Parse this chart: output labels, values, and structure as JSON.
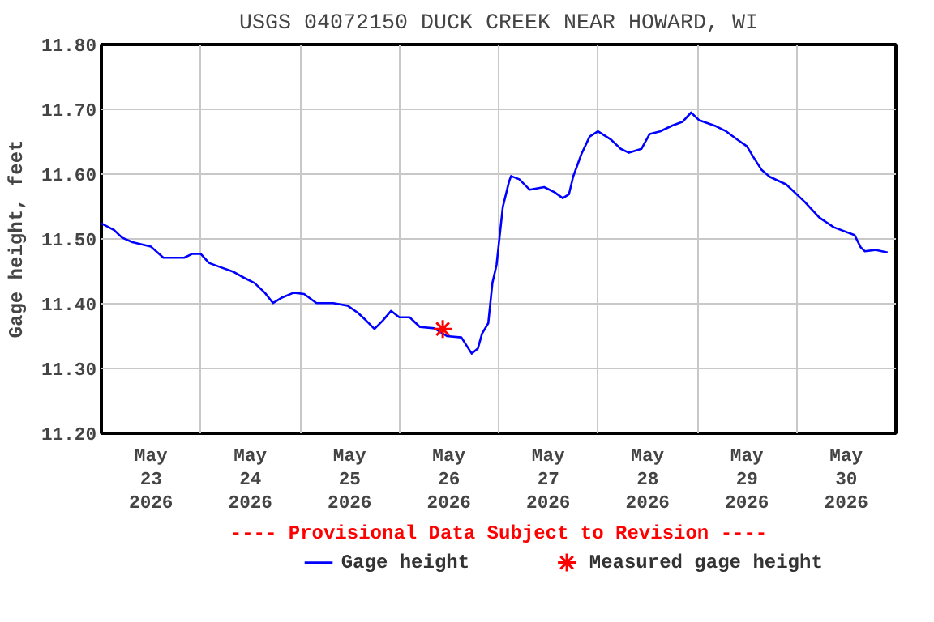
{
  "chart_data": {
    "type": "line",
    "title": "USGS 04072150 DUCK CREEK NEAR HOWARD, WI",
    "ylabel": "Gage height, feet",
    "annotations": [
      "---- Provisional Data Subject to Revision ----"
    ],
    "xlim": [
      "2026-05-23T00:00",
      "2026-05-31T00:00"
    ],
    "xticks": [
      {
        "value": "2026-05-23T12:00",
        "label": "May\n23\n2026"
      },
      {
        "value": "2026-05-24T12:00",
        "label": "May\n24\n2026"
      },
      {
        "value": "2026-05-25T12:00",
        "label": "May\n25\n2026"
      },
      {
        "value": "2026-05-26T12:00",
        "label": "May\n26\n2026"
      },
      {
        "value": "2026-05-27T12:00",
        "label": "May\n27\n2026"
      },
      {
        "value": "2026-05-28T12:00",
        "label": "May\n28\n2026"
      },
      {
        "value": "2026-05-29T12:00",
        "label": "May\n29\n2026"
      },
      {
        "value": "2026-05-30T12:00",
        "label": "May\n30\n2026"
      },
      {
        "value": "2026-05-24T00:00",
        "label": null
      },
      {
        "value": "2026-05-25T00:00",
        "label": null
      },
      {
        "value": "2026-05-26T00:00",
        "label": null
      },
      {
        "value": "2026-05-27T00:00",
        "label": null
      },
      {
        "value": "2026-05-28T00:00",
        "label": null
      },
      {
        "value": "2026-05-29T00:00",
        "label": null
      },
      {
        "value": "2026-05-30T00:00",
        "label": null
      }
    ],
    "ylim": [
      11.2,
      11.8
    ],
    "yticks": [
      {
        "value": 11.2,
        "label": "11.20"
      },
      {
        "value": 11.3,
        "label": "11.30"
      },
      {
        "value": 11.4,
        "label": "11.40"
      },
      {
        "value": 11.5,
        "label": "11.50"
      },
      {
        "value": 11.6,
        "label": "11.60"
      },
      {
        "value": 11.7,
        "label": "11.70"
      },
      {
        "value": 11.8,
        "label": "11.80"
      }
    ],
    "grid": true,
    "legend": "bottom",
    "series": [
      {
        "name": "Gage height",
        "type": "line",
        "color": "#0000ff",
        "line_style": "solid",
        "x": [
          "2026-05-23T00:00",
          "2026-05-23T03:00",
          "2026-05-23T05:00",
          "2026-05-23T07:30",
          "2026-05-23T12:00",
          "2026-05-23T15:00",
          "2026-05-23T20:00",
          "2026-05-23T22:00",
          "2026-05-24T00:00",
          "2026-05-24T02:00",
          "2026-05-24T04:30",
          "2026-05-24T08:00",
          "2026-05-24T10:30",
          "2026-05-24T13:00",
          "2026-05-24T15:30",
          "2026-05-24T17:30",
          "2026-05-24T19:30",
          "2026-05-24T22:30",
          "2026-05-25T01:00",
          "2026-05-25T04:00",
          "2026-05-25T08:00",
          "2026-05-25T11:30",
          "2026-05-25T14:00",
          "2026-05-25T16:00",
          "2026-05-25T18:00",
          "2026-05-25T20:00",
          "2026-05-25T22:00",
          "2026-05-26T00:00",
          "2026-05-26T02:30",
          "2026-05-26T05:00",
          "2026-05-26T08:30",
          "2026-05-26T11:30",
          "2026-05-26T15:00",
          "2026-05-26T17:30",
          "2026-05-26T19:00",
          "2026-05-26T20:00",
          "2026-05-26T21:30",
          "2026-05-26T22:30",
          "2026-05-26T23:30",
          "2026-05-27T01:00",
          "2026-05-27T02:30",
          "2026-05-27T03:00",
          "2026-05-27T05:00",
          "2026-05-27T07:30",
          "2026-05-27T11:00",
          "2026-05-27T13:30",
          "2026-05-27T15:30",
          "2026-05-27T17:00",
          "2026-05-27T18:00",
          "2026-05-27T20:00",
          "2026-05-27T22:00",
          "2026-05-28T00:00",
          "2026-05-28T03:00",
          "2026-05-28T05:30",
          "2026-05-28T07:30",
          "2026-05-28T10:30",
          "2026-05-28T12:30",
          "2026-05-28T15:00",
          "2026-05-28T18:00",
          "2026-05-28T20:30",
          "2026-05-28T22:30",
          "2026-05-29T00:30",
          "2026-05-29T04:30",
          "2026-05-29T07:00",
          "2026-05-29T09:30",
          "2026-05-29T12:00",
          "2026-05-29T13:30",
          "2026-05-29T15:30",
          "2026-05-29T17:30",
          "2026-05-29T21:30",
          "2026-05-29T23:30",
          "2026-05-30T02:00",
          "2026-05-30T05:30",
          "2026-05-30T09:00",
          "2026-05-30T14:00",
          "2026-05-30T15:30",
          "2026-05-30T16:30",
          "2026-05-30T19:00",
          "2026-05-30T22:00"
        ],
        "values": [
          11.524,
          11.514,
          11.502,
          11.495,
          11.488,
          11.471,
          11.471,
          11.477,
          11.477,
          11.463,
          11.457,
          11.449,
          11.44,
          11.432,
          11.417,
          11.401,
          11.409,
          11.417,
          11.415,
          11.401,
          11.401,
          11.397,
          11.386,
          11.374,
          11.361,
          11.374,
          11.389,
          11.379,
          11.379,
          11.364,
          11.362,
          11.35,
          11.348,
          11.323,
          11.331,
          11.354,
          11.37,
          11.432,
          11.46,
          11.549,
          11.588,
          11.597,
          11.592,
          11.576,
          11.58,
          11.572,
          11.563,
          11.569,
          11.596,
          11.631,
          11.658,
          11.666,
          11.654,
          11.639,
          11.633,
          11.639,
          11.662,
          11.666,
          11.675,
          11.681,
          11.695,
          11.683,
          11.674,
          11.666,
          11.654,
          11.643,
          11.627,
          11.607,
          11.596,
          11.584,
          11.572,
          11.557,
          11.533,
          11.518,
          11.506,
          11.487,
          11.481,
          11.483,
          11.479
        ]
      },
      {
        "name": "Measured gage height",
        "type": "scatter",
        "color": "#ff0000",
        "marker": "cross",
        "x": [
          "2026-05-26T10:30"
        ],
        "values": [
          11.361
        ]
      }
    ]
  }
}
